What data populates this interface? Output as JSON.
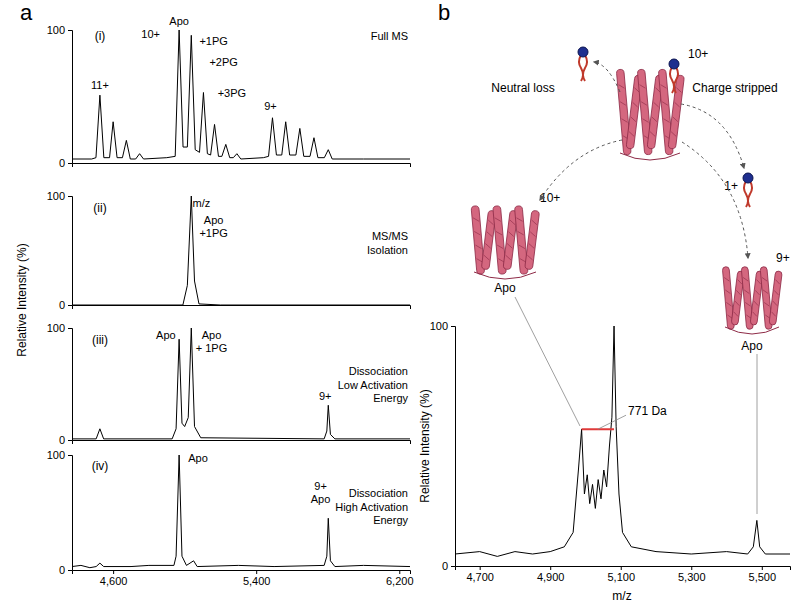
{
  "chart_data": [
    {
      "type": "line",
      "panel": "a",
      "subtitle": "(i)",
      "title": [
        "Full MS"
      ],
      "ylabel": "Relative Intensity (%)",
      "color": "#000000",
      "xlim": [
        4370,
        6260
      ],
      "ylim": [
        0,
        100
      ],
      "yticks": [
        0,
        100
      ],
      "tick_labels": "y",
      "x": [
        4370,
        4480,
        4504,
        4526,
        4548,
        4580,
        4600,
        4622,
        4652,
        4674,
        4696,
        4726,
        4748,
        4770,
        4900,
        4947,
        4969,
        4991,
        5015,
        5037,
        5059,
        5083,
        5105,
        5127,
        5145,
        5167,
        5189,
        5208,
        5230,
        5252,
        5272,
        5292,
        5314,
        5440,
        5469,
        5491,
        5513,
        5543,
        5565,
        5587,
        5622,
        5644,
        5666,
        5701,
        5723,
        5745,
        5781,
        5803,
        5825,
        6000,
        6260
      ],
      "values": [
        3,
        3,
        4,
        51,
        4,
        4,
        31,
        4,
        4,
        17,
        3,
        3,
        7,
        3,
        4,
        5,
        100,
        12,
        12,
        96,
        10,
        8,
        53,
        7,
        6,
        29,
        5,
        5,
        14,
        4,
        4,
        7,
        3,
        4,
        5,
        34,
        6,
        6,
        31,
        6,
        6,
        26,
        5,
        5,
        19,
        4,
        4,
        10,
        3,
        3,
        3
      ],
      "annotations": [
        {
          "text": "11+",
          "x": 4526,
          "y": 56
        },
        {
          "text": "10+",
          "x": 4810,
          "y": 94
        },
        {
          "text": "Apo",
          "x": 4969,
          "y": 104
        },
        {
          "text": "+1PG",
          "x": 5162,
          "y": 89
        },
        {
          "text": "+2PG",
          "x": 5218,
          "y": 73
        },
        {
          "text": "+3PG",
          "x": 5264,
          "y": 50
        },
        {
          "text": "9+",
          "x": 5480,
          "y": 40
        }
      ]
    },
    {
      "type": "line",
      "subtitle": "(ii)",
      "title": [
        "MS/MS",
        "Isolation"
      ],
      "color": "#000000",
      "xlim": [
        4370,
        6260
      ],
      "ylim": [
        0,
        100
      ],
      "yticks": [
        0,
        100
      ],
      "tick_labels": "y",
      "x": [
        4370,
        4990,
        5015,
        5037,
        5055,
        5080,
        5200,
        6260
      ],
      "values": [
        0,
        0,
        18,
        100,
        22,
        1,
        0,
        0
      ],
      "annotations": [
        {
          "text": "m/z",
          "x": 5094,
          "y": 90
        },
        {
          "text": [
            "Apo",
            "+1PG"
          ],
          "x": 5162,
          "y": 74
        }
      ]
    },
    {
      "type": "line",
      "subtitle": "(iii)",
      "title": [
        "Dissociation",
        "Low Activation",
        "Energy"
      ],
      "color": "#000000",
      "xlim": [
        4370,
        6260
      ],
      "ylim": [
        0,
        100
      ],
      "yticks": [
        0,
        100
      ],
      "tick_labels": "y",
      "x": [
        4370,
        4505,
        4526,
        4547,
        4930,
        4952,
        4969,
        4985,
        5000,
        5020,
        5037,
        5055,
        5090,
        5780,
        5795,
        5803,
        5815,
        5840,
        6260
      ],
      "values": [
        1,
        1,
        10,
        1,
        1,
        10,
        90,
        15,
        12,
        20,
        100,
        12,
        2,
        1,
        8,
        31,
        5,
        1,
        1
      ],
      "annotations": [
        {
          "text": "Apo",
          "x": 4895,
          "y": 90
        },
        {
          "text": [
            "Apo",
            "+ 1PG"
          ],
          "x": 5150,
          "y": 90
        },
        {
          "text": "9+",
          "x": 5786,
          "y": 36
        }
      ]
    },
    {
      "type": "line",
      "subtitle": "(iv)",
      "title": [
        "Dissociation",
        "High Activation",
        "Energy"
      ],
      "color": "#000000",
      "xlim": [
        4370,
        6260
      ],
      "ylim": [
        0,
        100
      ],
      "yticks": [
        0,
        100
      ],
      "xticks": [
        {
          "value": 4600,
          "label": "4,600"
        },
        {
          "value": 5400,
          "label": "5,400"
        },
        {
          "value": 6200,
          "label": "6,200"
        }
      ],
      "x": [
        4370,
        4420,
        4470,
        4505,
        4526,
        4547,
        4700,
        4800,
        4940,
        4952,
        4969,
        4985,
        5010,
        5050,
        5070,
        5300,
        5500,
        5780,
        5795,
        5803,
        5815,
        5840,
        6000,
        6260
      ],
      "values": [
        3,
        4,
        2,
        3,
        6,
        3,
        3,
        4,
        4,
        12,
        100,
        12,
        4,
        8,
        3,
        4,
        3,
        4,
        12,
        45,
        8,
        3,
        4,
        3
      ],
      "annotations": [
        {
          "text": "Apo",
          "x": 5075,
          "y": 94
        },
        {
          "text": [
            "9+",
            "Apo"
          ],
          "x": 5760,
          "y": 70
        }
      ]
    },
    {
      "type": "line",
      "panel": "b",
      "ylabel": "Relative Intensity (%)",
      "xlabel": "m/z",
      "color": "#000000",
      "xlim": [
        4630,
        5580
      ],
      "ylim": [
        0,
        100
      ],
      "yticks": [
        0,
        100
      ],
      "xticks": [
        {
          "value": 4700,
          "label": "4,700"
        },
        {
          "value": 4900,
          "label": "4,900"
        },
        {
          "value": 5100,
          "label": "5,100"
        },
        {
          "value": 5300,
          "label": "5,300"
        },
        {
          "value": 5500,
          "label": "5,500"
        }
      ],
      "x": [
        4630,
        4700,
        4750,
        4800,
        4850,
        4900,
        4940,
        4965,
        4980,
        4989,
        4997,
        5005,
        5012,
        5020,
        5028,
        5036,
        5044,
        5052,
        5060,
        5068,
        5075,
        5081,
        5087,
        5095,
        5105,
        5130,
        5200,
        5300,
        5400,
        5460,
        5476,
        5486,
        5494,
        5510,
        5580
      ],
      "values": [
        5,
        6,
        4,
        6,
        5,
        6,
        8,
        14,
        40,
        57,
        30,
        38,
        26,
        34,
        24,
        36,
        28,
        40,
        33,
        50,
        62,
        100,
        58,
        30,
        14,
        8,
        6,
        5,
        6,
        5,
        8,
        19,
        8,
        5,
        5
      ],
      "annotations": [
        {
          "text": "771 Da",
          "x": [
            4989,
            5081
          ],
          "y": 57
        }
      ]
    }
  ],
  "diagram": {
    "parent": {
      "charge": "10+"
    },
    "neutral_loss": {
      "label": "Neutral loss"
    },
    "charge_stripped": {
      "label": "Charge stripped",
      "charge": "1+"
    },
    "apo": {
      "charge": "10+",
      "label": "Apo"
    },
    "stripped_apo": {
      "charge": "9+",
      "label": "Apo"
    }
  }
}
